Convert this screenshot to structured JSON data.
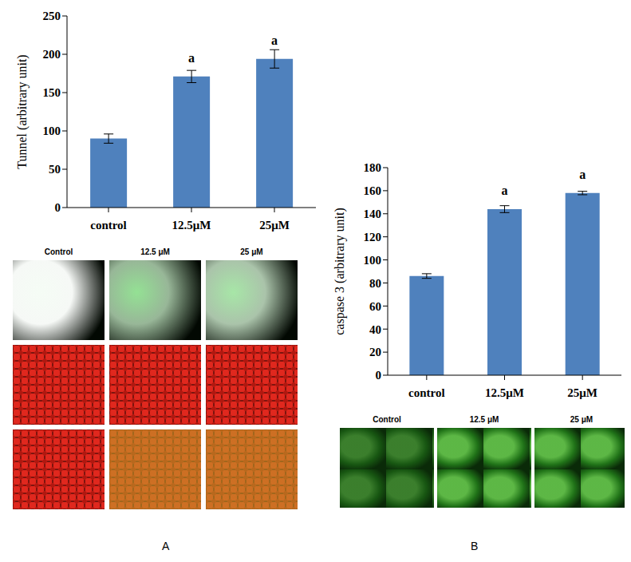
{
  "chart_data": [
    {
      "type": "bar",
      "panel_label": "A",
      "ylabel": "Tunnel (arbitrary unit)",
      "categories": [
        "control",
        "12.5μM",
        "25μM"
      ],
      "values": [
        90,
        171,
        194
      ],
      "errors": [
        6,
        8,
        12
      ],
      "annotations": [
        null,
        "a",
        "a"
      ],
      "color": "#4f81bd",
      "ylim": [
        0,
        250
      ],
      "yticks": [
        0,
        50,
        100,
        150,
        200,
        250
      ],
      "grid": false,
      "image_labels": [
        "Control",
        "12.5 μM",
        "25 μM"
      ]
    },
    {
      "type": "bar",
      "panel_label": "B",
      "ylabel": "caspase 3 (arbitrary unit)",
      "categories": [
        "control",
        "12.5μM",
        "25μM"
      ],
      "values": [
        86,
        144,
        158
      ],
      "errors": [
        2,
        3,
        1.5
      ],
      "annotations": [
        null,
        "a",
        "a"
      ],
      "color": "#4f81bd",
      "ylim": [
        0,
        180
      ],
      "yticks": [
        0,
        20,
        40,
        60,
        80,
        100,
        120,
        140,
        160,
        180
      ],
      "grid": false,
      "image_labels": [
        "Control",
        "12.5 μM",
        "25 μM"
      ]
    }
  ]
}
